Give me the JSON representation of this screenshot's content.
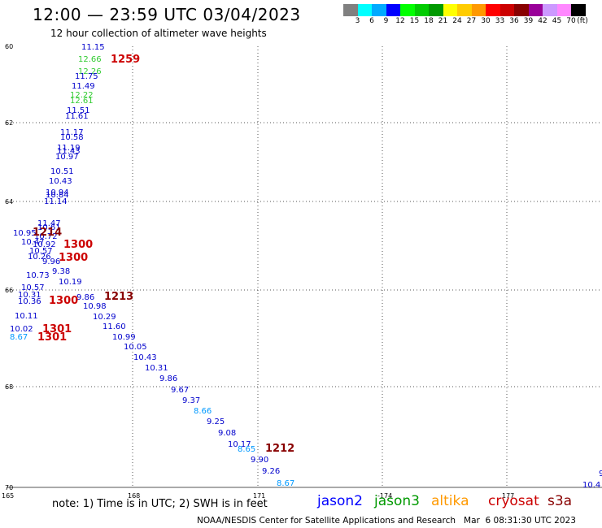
{
  "header": {
    "title": "12:00 — 23:59 UTC 03/04/2023",
    "subtitle": "12 hour collection of altimeter wave heights"
  },
  "legend": {
    "colors": [
      "#808080",
      "#00ffff",
      "#00aaff",
      "#0000ff",
      "#00ff00",
      "#00cc00",
      "#009900",
      "#ffff00",
      "#ffcc00",
      "#ff9900",
      "#ff0000",
      "#cc0000",
      "#880000",
      "#990099",
      "#cc99ff",
      "#ff88ff",
      "#000000"
    ],
    "labels": [
      "3",
      "6",
      "9",
      "12",
      "15",
      "18",
      "21",
      "24",
      "27",
      "30",
      "33",
      "36",
      "39",
      "42",
      "45",
      "70",
      "(ft)"
    ]
  },
  "map": {
    "lat_labels": [
      "60",
      "62",
      "64",
      "66",
      "68",
      "70"
    ],
    "lon_labels": [
      "165",
      "168",
      "171",
      "-174",
      "177"
    ],
    "wave_labels": [
      {
        "t": "11.15",
        "c": "#0000cc"
      },
      {
        "t": "12.66",
        "c": "#33cc33"
      },
      {
        "t": "12.26",
        "c": "#33cc33"
      },
      {
        "t": "11.75",
        "c": "#0000cc"
      },
      {
        "t": "11.49",
        "c": "#0000cc"
      },
      {
        "t": "12.22",
        "c": "#33cc33"
      },
      {
        "t": "12.61",
        "c": "#33cc33"
      },
      {
        "t": "11.51",
        "c": "#0000cc"
      },
      {
        "t": "11.61",
        "c": "#0000cc"
      },
      {
        "t": "11.17",
        "c": "#0000cc"
      },
      {
        "t": "10.58",
        "c": "#0000cc"
      },
      {
        "t": "11.19",
        "c": "#0000cc"
      },
      {
        "t": "11.43",
        "c": "#0000cc"
      },
      {
        "t": "10.97",
        "c": "#0000cc"
      },
      {
        "t": "10.51",
        "c": "#0000cc"
      },
      {
        "t": "10.43",
        "c": "#0000cc"
      },
      {
        "t": "10.94",
        "c": "#0000cc"
      },
      {
        "t": "10.84",
        "c": "#0000cc"
      },
      {
        "t": "11.14",
        "c": "#0000cc"
      },
      {
        "t": "11.47",
        "c": "#0000cc"
      },
      {
        "t": "10.61",
        "c": "#0000cc"
      },
      {
        "t": "10.95",
        "c": "#0000cc"
      },
      {
        "t": "10.72",
        "c": "#0000cc"
      },
      {
        "t": "10.47",
        "c": "#0000cc"
      },
      {
        "t": "10.92",
        "c": "#0000cc"
      },
      {
        "t": "10.57",
        "c": "#0000cc"
      },
      {
        "t": "10.26",
        "c": "#0000cc"
      },
      {
        "t": "9.96",
        "c": "#0000cc"
      },
      {
        "t": "9.38",
        "c": "#0000cc"
      },
      {
        "t": "10.73",
        "c": "#0000cc"
      },
      {
        "t": "10.19",
        "c": "#0000cc"
      },
      {
        "t": "10.57",
        "c": "#0000cc"
      },
      {
        "t": "10.31",
        "c": "#0000cc"
      },
      {
        "t": "10.36",
        "c": "#0000cc"
      },
      {
        "t": "9.86",
        "c": "#0000cc"
      },
      {
        "t": "10.98",
        "c": "#0000cc"
      },
      {
        "t": "10.11",
        "c": "#0000cc"
      },
      {
        "t": "10.29",
        "c": "#0000cc"
      },
      {
        "t": "10.02",
        "c": "#0000cc"
      },
      {
        "t": "11.60",
        "c": "#0000cc"
      },
      {
        "t": "8.67",
        "c": "#0099ff"
      },
      {
        "t": "10.99",
        "c": "#0000cc"
      },
      {
        "t": "10.05",
        "c": "#0000cc"
      },
      {
        "t": "10.43",
        "c": "#0000cc"
      },
      {
        "t": "10.31",
        "c": "#0000cc"
      },
      {
        "t": "9.86",
        "c": "#0000cc"
      },
      {
        "t": "9.67",
        "c": "#0000cc"
      },
      {
        "t": "9.37",
        "c": "#0000cc"
      },
      {
        "t": "8.66",
        "c": "#0099ff"
      },
      {
        "t": "9.25",
        "c": "#0000cc"
      },
      {
        "t": "9.08",
        "c": "#0000cc"
      },
      {
        "t": "10.17",
        "c": "#0000cc"
      },
      {
        "t": "8.65",
        "c": "#0099ff"
      },
      {
        "t": "9.90",
        "c": "#0000cc"
      },
      {
        "t": "9.26",
        "c": "#0000cc"
      },
      {
        "t": "8.67",
        "c": "#0099ff"
      },
      {
        "t": "10.4",
        "c": "#0000cc"
      },
      {
        "t": "9",
        "c": "#0000cc"
      }
    ],
    "time_labels": [
      {
        "t": "1259",
        "c": "#cc0000"
      },
      {
        "t": "1214",
        "c": "#880000"
      },
      {
        "t": "1300",
        "c": "#cc0000"
      },
      {
        "t": "1300",
        "c": "#cc0000"
      },
      {
        "t": "1300",
        "c": "#cc0000"
      },
      {
        "t": "1213",
        "c": "#880000"
      },
      {
        "t": "1301",
        "c": "#cc0000"
      },
      {
        "t": "1301",
        "c": "#cc0000"
      },
      {
        "t": "1212",
        "c": "#880000"
      }
    ]
  },
  "footer": {
    "note": "note: 1) Time is in UTC; 2) SWH is in feet",
    "satellites": [
      {
        "name": "jason2",
        "color": "#0000ff"
      },
      {
        "name": "jason3",
        "color": "#009900"
      },
      {
        "name": "altika",
        "color": "#ff9900"
      },
      {
        "name": "cryosat",
        "color": "#cc0000"
      },
      {
        "name": "s3a",
        "color": "#880000"
      }
    ],
    "credit": "NOAA/NESDIS Center for Satellite Applications and Research   Mar  6 08:31:30 UTC 2023"
  }
}
